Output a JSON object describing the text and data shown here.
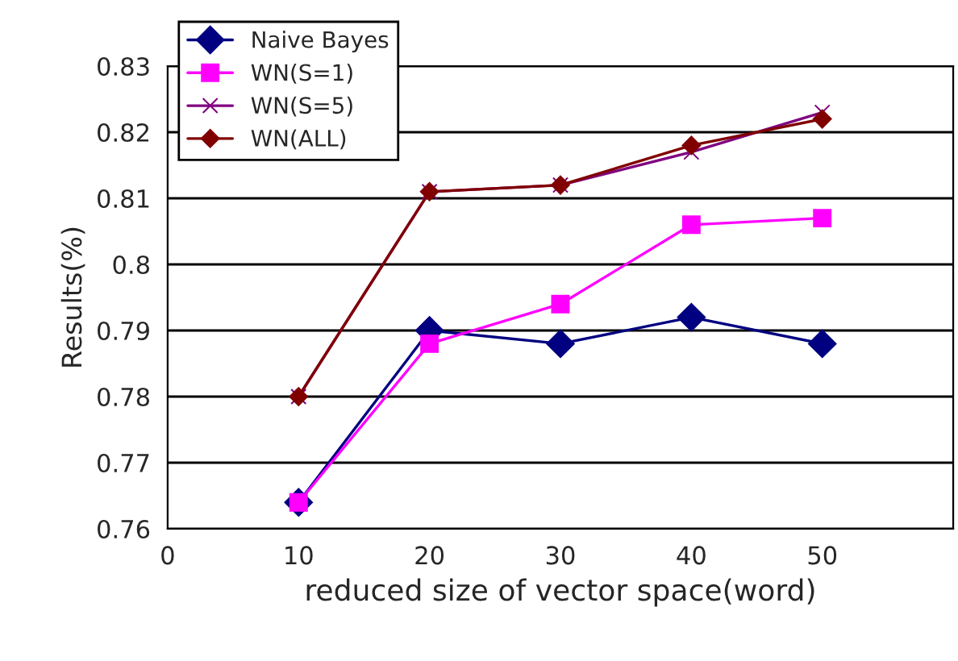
{
  "chart_data": {
    "type": "line",
    "xlabel": "reduced size of vector space(word)",
    "ylabel": "Results(%)",
    "x": [
      10,
      20,
      30,
      40,
      50
    ],
    "series": [
      {
        "name": "Naive Bayes",
        "color": "#000080",
        "marker": "diamond",
        "values": [
          0.764,
          0.79,
          0.788,
          0.792,
          0.788
        ]
      },
      {
        "name": "WN(S=1)",
        "color": "#ff00ff",
        "marker": "square",
        "values": [
          0.764,
          0.788,
          0.794,
          0.806,
          0.807
        ]
      },
      {
        "name": "WN(S=5)",
        "color": "#800080",
        "marker": "cross",
        "values": [
          0.78,
          0.811,
          0.812,
          0.817,
          0.823
        ]
      },
      {
        "name": "WN(ALL)",
        "color": "#800000",
        "marker": "diamond",
        "values": [
          0.78,
          0.811,
          0.812,
          0.818,
          0.822
        ]
      }
    ],
    "xlim": [
      0,
      60
    ],
    "xticks": [
      0,
      10,
      20,
      30,
      40,
      50
    ],
    "ylim": [
      0.76,
      0.83
    ],
    "yticks": [
      0.76,
      0.77,
      0.78,
      0.79,
      0.8,
      0.81,
      0.82,
      0.83
    ],
    "grid": "y",
    "legend": "top left"
  }
}
